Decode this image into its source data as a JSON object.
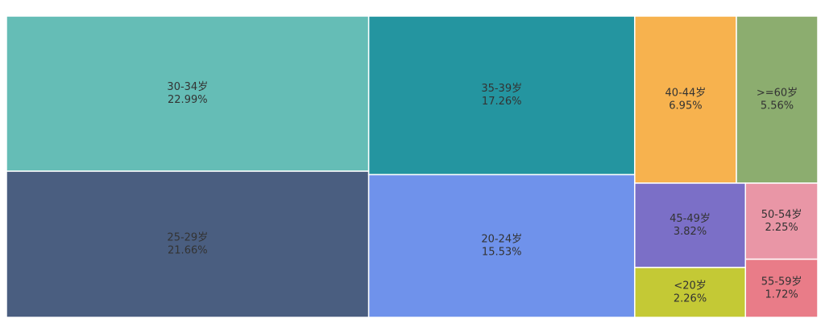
{
  "chart_data": {
    "type": "treemap",
    "categories": [
      "30-34岁",
      "25-29岁",
      "35-39岁",
      "20-24岁",
      "40-44岁",
      ">=60岁",
      "45-49岁",
      "50-54岁",
      "<20岁",
      "55-59岁"
    ],
    "values": [
      22.99,
      21.66,
      17.26,
      15.53,
      6.95,
      5.56,
      3.82,
      2.25,
      2.26,
      1.72
    ],
    "value_labels": [
      "22.99%",
      "21.66%",
      "17.26%",
      "15.53%",
      "6.95%",
      "5.56%",
      "3.82%",
      "2.25%",
      "2.26%",
      "1.72%"
    ],
    "colors": [
      "#65bdb6",
      "#4a5e80",
      "#2495a0",
      "#6f92eb",
      "#f7b24e",
      "#8cad6f",
      "#7b6fc7",
      "#e996a6",
      "#c4c935",
      "#e97c88"
    ]
  }
}
